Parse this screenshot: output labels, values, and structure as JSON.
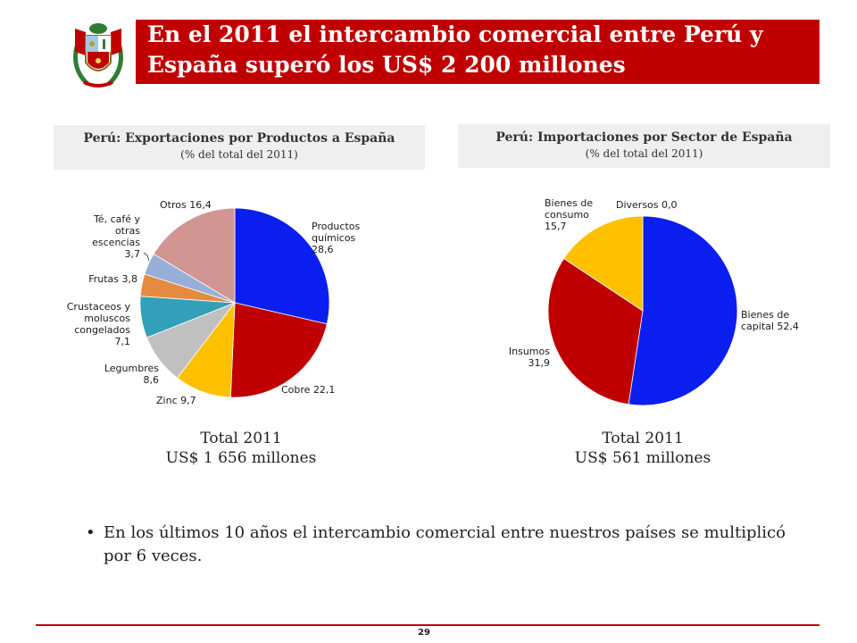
{
  "header": {
    "title_line1": "En el 2011 el intercambio comercial entre Perú y",
    "title_line2": "España superó los US$ 2 200 millones",
    "brand_color": "#c00000",
    "emblem_icon": "peru-coat-of-arms-icon"
  },
  "left_panel": {
    "title": "Perú: Exportaciones por Productos a España",
    "subtitle": "(% del total del 2011)",
    "total_line1": "Total 2011",
    "total_line2": "US$ 1 656 millones"
  },
  "right_panel": {
    "title": "Perú: Importaciones por Sector de España",
    "subtitle": "(% del total del 2011)",
    "total_line1": "Total 2011",
    "total_line2": "US$ 561 millones"
  },
  "chart_data": [
    {
      "type": "pie",
      "title": "Perú: Exportaciones por Productos a España",
      "subtitle": "(% del total del 2011)",
      "start_angle_deg": 0,
      "direction": "clockwise",
      "slices": [
        {
          "label": [
            "Productos",
            "químicos",
            "28,6"
          ],
          "value": 28.6,
          "color": "#0a1ef0"
        },
        {
          "label": [
            "Cobre 22,1"
          ],
          "value": 22.1,
          "color": "#c00000"
        },
        {
          "label": [
            "Zinc 9,7"
          ],
          "value": 9.7,
          "color": "#ffc000"
        },
        {
          "label": [
            "Legumbres",
            "8,6"
          ],
          "value": 8.6,
          "color": "#c0c0c0"
        },
        {
          "label": [
            "Crustaceos y",
            "moluscos",
            "congelados",
            "7,1"
          ],
          "value": 7.1,
          "color": "#31a0b8"
        },
        {
          "label": [
            "Frutas 3,8"
          ],
          "value": 3.8,
          "color": "#e58a40"
        },
        {
          "label": [
            "Té, café y",
            "otras",
            "escencias",
            "3,7"
          ],
          "value": 3.7,
          "color": "#95afd9"
        },
        {
          "label": [
            "Otros 16,4"
          ],
          "value": 16.4,
          "color": "#d19592"
        }
      ]
    },
    {
      "type": "pie",
      "title": "Perú: Importaciones por Sector de España",
      "subtitle": "(% del total del 2011)",
      "start_angle_deg": 0,
      "direction": "clockwise",
      "slices": [
        {
          "label": [
            "Bienes de",
            "capital 52,4"
          ],
          "value": 52.4,
          "color": "#0a1ef0"
        },
        {
          "label": [
            "Insumos",
            "31,9"
          ],
          "value": 31.9,
          "color": "#c00000"
        },
        {
          "label": [
            "Bienes de",
            "consumo",
            "15,7"
          ],
          "value": 15.7,
          "color": "#ffc000"
        },
        {
          "label": [
            "Diversos 0,0"
          ],
          "value": 0.0,
          "color": "#888888"
        }
      ]
    }
  ],
  "bullet": {
    "symbol": "•",
    "text": "En los últimos 10 años el intercambio comercial entre nuestros países se multiplicó por 6 veces."
  },
  "footer": {
    "page_number": "29"
  }
}
